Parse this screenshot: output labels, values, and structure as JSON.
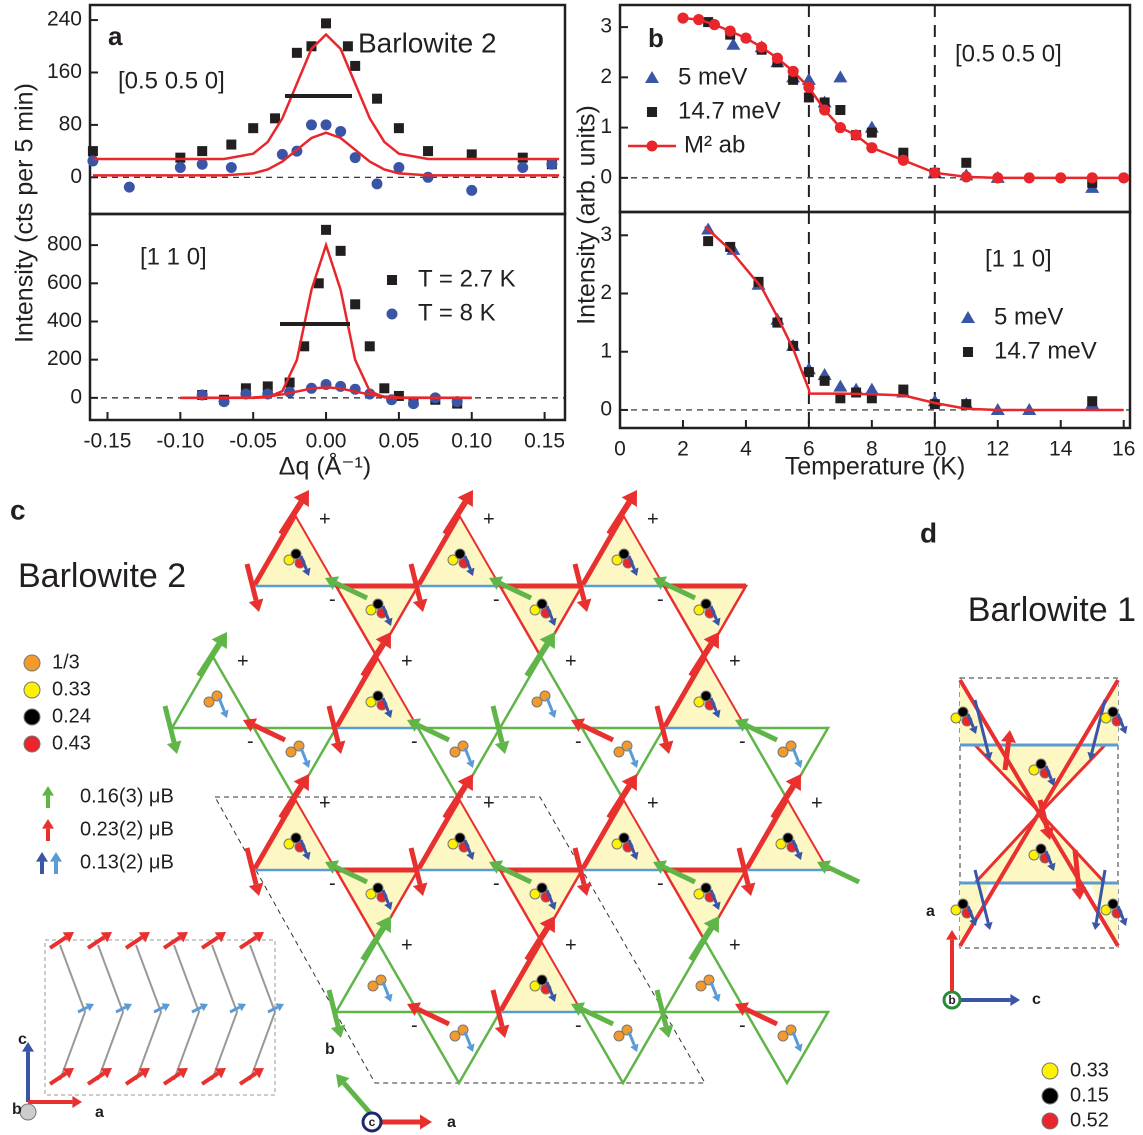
{
  "chart_data": [
    {
      "type": "scatter",
      "annotations": [
        "a",
        "Barlowite 2",
        "[0.5 0.5 0]"
      ],
      "ylabel": "Intensity (cts per 5 min)",
      "xlim": [
        -0.162,
        0.164
      ],
      "ylim": [
        -56,
        263
      ],
      "yticks": [
        0,
        80,
        160,
        240
      ],
      "series": [
        {
          "color": "#231f20",
          "marker": "square",
          "x": [
            -0.16,
            -0.1,
            -0.085,
            -0.065,
            -0.05,
            -0.035,
            -0.02,
            -0.01,
            0,
            0.015,
            0.02,
            0.035,
            0.05,
            0.07,
            0.1,
            0.135,
            0.155
          ],
          "values": [
            40,
            30,
            40,
            50,
            75,
            90,
            190,
            200,
            235,
            200,
            170,
            120,
            75,
            40,
            35,
            30,
            20
          ]
        },
        {
          "color": "#3a55a5",
          "marker": "circle",
          "x": [
            -0.16,
            -0.135,
            -0.1,
            -0.085,
            -0.065,
            -0.03,
            -0.02,
            -0.01,
            0,
            0.01,
            0.02,
            0.035,
            0.05,
            0.07,
            0.1,
            0.135,
            0.155
          ],
          "values": [
            25,
            -15,
            15,
            20,
            15,
            35,
            40,
            80,
            80,
            70,
            30,
            -10,
            15,
            0,
            -20,
            15,
            20
          ]
        },
        {
          "color": "#e8262b",
          "line": true,
          "x": [
            -0.16,
            -0.1,
            -0.07,
            -0.05,
            -0.04,
            -0.03,
            -0.02,
            -0.01,
            0,
            0.01,
            0.02,
            0.03,
            0.04,
            0.05,
            0.07,
            0.1,
            0.16
          ],
          "values": [
            28,
            28,
            28,
            36,
            54,
            90,
            143,
            196,
            218,
            196,
            143,
            90,
            54,
            36,
            28,
            28,
            28
          ]
        },
        {
          "color": "#e8262b",
          "line": true,
          "x": [
            -0.16,
            -0.1,
            -0.07,
            -0.05,
            -0.04,
            -0.03,
            -0.02,
            -0.01,
            0,
            0.01,
            0.02,
            0.03,
            0.04,
            0.05,
            0.07,
            0.1,
            0.16
          ],
          "values": [
            3,
            3,
            3,
            6,
            12,
            24,
            42,
            60,
            68,
            60,
            42,
            24,
            12,
            6,
            3,
            3,
            3
          ]
        }
      ]
    },
    {
      "type": "scatter",
      "annotations": [
        "[1 1 0]"
      ],
      "xlabel": "Δq (Å⁻¹)",
      "xlim": [
        -0.162,
        0.164
      ],
      "ylim": [
        -116,
        963
      ],
      "yticks": [
        0,
        200,
        400,
        600,
        800
      ],
      "xticks": [
        -0.15,
        {
          "value": -0.1,
          "label": "-0.10"
        },
        -0.05,
        {
          "value": 0,
          "label": "0.00"
        },
        0.05,
        {
          "value": 0.1,
          "label": "0.10"
        },
        0.15
      ],
      "series": [
        {
          "name": "T = 2.7 K",
          "color": "#231f20",
          "marker": "square",
          "x": [
            -0.085,
            -0.07,
            -0.055,
            -0.04,
            -0.025,
            -0.015,
            -0.005,
            0,
            0.01,
            0.02,
            0.03,
            0.04,
            0.05,
            0.06,
            0.075,
            0.09
          ],
          "values": [
            15,
            -10,
            50,
            60,
            80,
            270,
            600,
            880,
            770,
            490,
            270,
            50,
            10,
            -20,
            -10,
            -30
          ]
        },
        {
          "name": "T = 8 K",
          "color": "#3a55a5",
          "marker": "circle",
          "x": [
            -0.085,
            -0.07,
            -0.055,
            -0.04,
            -0.025,
            -0.01,
            0,
            0.01,
            0.02,
            0.03,
            0.045,
            0.06,
            0.075,
            0.09
          ],
          "values": [
            15,
            -20,
            20,
            20,
            30,
            50,
            70,
            60,
            45,
            20,
            -10,
            -30,
            0,
            -20
          ]
        },
        {
          "color": "#e8262b",
          "line": true,
          "x": [
            -0.1,
            -0.05,
            -0.04,
            -0.03,
            -0.02,
            -0.01,
            0,
            0.01,
            0.02,
            0.03,
            0.04,
            0.05,
            0.1
          ],
          "values": [
            0,
            0,
            3,
            35,
            199,
            566,
            800,
            566,
            199,
            35,
            3,
            0,
            0
          ]
        },
        {
          "color": "#e8262b",
          "line": true,
          "x": [
            -0.1,
            -0.05,
            -0.04,
            -0.03,
            -0.02,
            -0.01,
            0,
            0.01,
            0.02,
            0.03,
            0.04,
            0.05,
            0.1
          ],
          "values": [
            0,
            2,
            7,
            18,
            33,
            49,
            55,
            49,
            33,
            18,
            7,
            2,
            0
          ]
        }
      ]
    },
    {
      "type": "scatter",
      "annotations": [
        "b",
        "[0.5 0.5 0]"
      ],
      "ylabel": "Intensity (arb. units)",
      "xlim": [
        0,
        16.2
      ],
      "ylim": [
        -0.68,
        3.44
      ],
      "yticks": [
        0,
        1,
        2,
        3
      ],
      "vlines": [
        6,
        10
      ],
      "series": [
        {
          "name": "5 meV",
          "color": "#3a55a5",
          "marker": "triangle",
          "x": [
            3.6,
            4.5,
            5,
            5.5,
            6,
            6.5,
            7,
            8,
            10,
            11,
            12,
            15
          ],
          "values": [
            2.65,
            2.6,
            2.3,
            2.0,
            1.95,
            1.5,
            2.0,
            1.0,
            0.1,
            0.05,
            0.0,
            -0.2
          ]
        },
        {
          "name": "14.7 meV",
          "color": "#231f20",
          "marker": "square",
          "x": [
            2.8,
            3.5,
            4.5,
            5,
            5.5,
            6,
            6.5,
            7,
            7.5,
            8,
            9,
            10,
            11,
            15
          ],
          "values": [
            3.1,
            2.85,
            2.55,
            2.3,
            1.95,
            1.6,
            1.5,
            1.35,
            0.85,
            0.9,
            0.5,
            0.1,
            0.3,
            -0.1
          ]
        },
        {
          "name": "M² ab",
          "color": "#e8262b",
          "marker": "circle",
          "line": true,
          "x": [
            2,
            2.5,
            3,
            3.5,
            4,
            4.5,
            5,
            5.5,
            6,
            6.5,
            7,
            7.5,
            8,
            9,
            10,
            11,
            12,
            13,
            14,
            15,
            16
          ],
          "values": [
            3.18,
            3.15,
            3.05,
            2.92,
            2.78,
            2.6,
            2.38,
            2.12,
            1.8,
            1.35,
            1.0,
            0.85,
            0.6,
            0.35,
            0.1,
            0.02,
            0,
            0,
            0,
            0,
            0
          ]
        }
      ]
    },
    {
      "type": "scatter",
      "annotations": [
        "[1 1 0]"
      ],
      "xlabel": "Temperature (K)",
      "xlim": [
        0,
        16.2
      ],
      "ylim": [
        -0.31,
        3.4
      ],
      "yticks": [
        0,
        1,
        2,
        3
      ],
      "xticks": [
        0,
        2,
        4,
        6,
        8,
        10,
        12,
        14,
        16
      ],
      "vlines": [
        6,
        10
      ],
      "series": [
        {
          "name": "5 meV",
          "color": "#3a55a5",
          "marker": "triangle",
          "x": [
            2.8,
            3.6,
            4.4,
            5,
            5.5,
            6,
            6.5,
            7,
            7.5,
            8,
            9,
            10,
            11,
            12,
            13,
            15
          ],
          "values": [
            3.1,
            2.75,
            2.15,
            1.55,
            1.1,
            0.7,
            0.6,
            0.4,
            0.35,
            0.35,
            0.3,
            0.15,
            0.1,
            0,
            0,
            0.1
          ]
        },
        {
          "name": "14.7 meV",
          "color": "#231f20",
          "marker": "square",
          "x": [
            2.8,
            3.5,
            4.4,
            5,
            5.5,
            6,
            6.5,
            7,
            7.5,
            8,
            9,
            10,
            11,
            15
          ],
          "values": [
            2.9,
            2.8,
            2.2,
            1.5,
            1.1,
            0.65,
            0.5,
            0.2,
            0.3,
            0.2,
            0.35,
            0.1,
            0.1,
            0.15
          ]
        },
        {
          "color": "#e8262b",
          "line": true,
          "x": [
            2.7,
            3.5,
            4.5,
            5,
            5.5,
            6,
            6.02,
            7,
            8,
            9,
            10,
            11,
            12,
            16
          ],
          "values": [
            3.15,
            2.75,
            2.1,
            1.6,
            1.05,
            0.35,
            0.28,
            0.28,
            0.27,
            0.25,
            0.12,
            0.02,
            0,
            0
          ]
        }
      ]
    }
  ],
  "panel_c": {
    "label": "c",
    "title": "Barlowite 2",
    "site_legend": [
      "1/3",
      "0.33",
      "0.24",
      "0.43"
    ],
    "moment_legend": [
      "0.16(3) μB",
      "0.23(2) μB",
      "0.13(2) μB"
    ],
    "plus": "+",
    "minus": "-",
    "axes": [
      "b",
      "c",
      "a"
    ],
    "inset_axes": [
      "c",
      "b",
      "a"
    ]
  },
  "panel_d": {
    "label": "d",
    "title": "Barlowite 1",
    "site_legend": [
      "0.33",
      "0.15",
      "0.52"
    ],
    "axes": [
      "a",
      "b",
      "c"
    ]
  }
}
